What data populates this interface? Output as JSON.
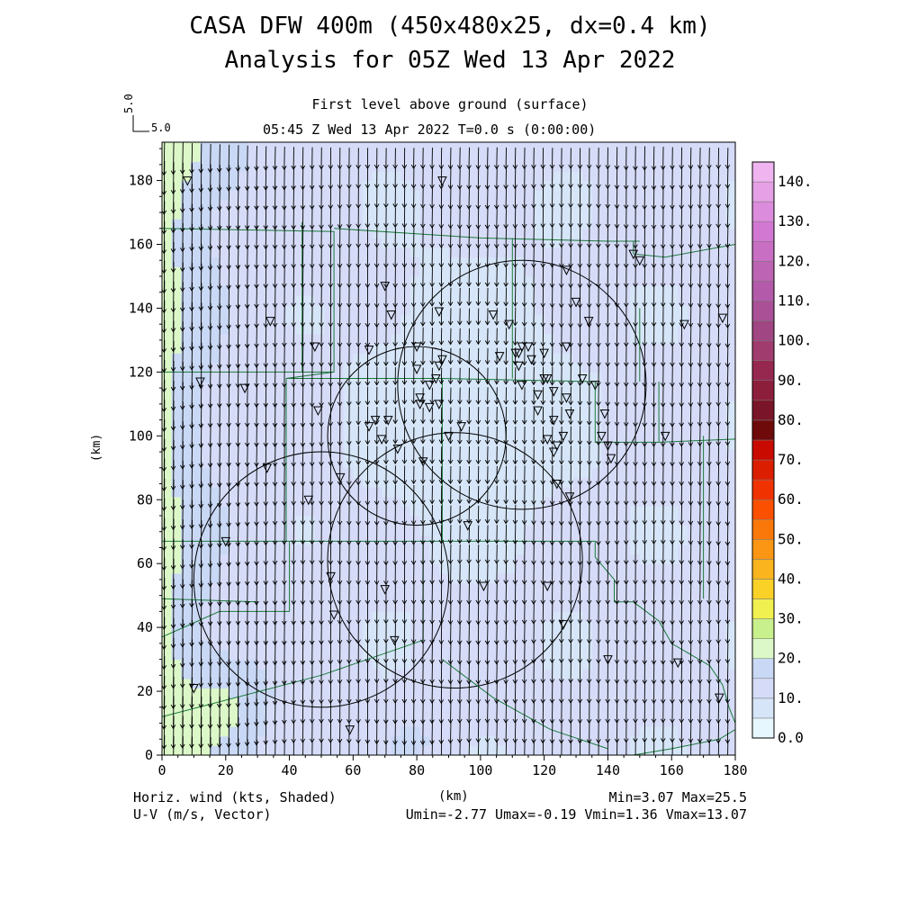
{
  "title": "CASA DFW 400m (450x480x25, dx=0.4 km)",
  "subtitle": "Analysis for 05Z Wed 13 Apr 2022",
  "level_label": "First level above ground (surface)",
  "time_label": "05:45 Z Wed 13 Apr 2022    T=0.0 s (0:00:00)",
  "ref_vector": {
    "value_label": "5.0",
    "speed_label": "5.0"
  },
  "bottom_left": {
    "line1": "Horiz. wind (kts, Shaded)",
    "line2": "U-V (m/s, Vector)"
  },
  "bottom_right": {
    "line1": "Min=3.07 Max=25.5",
    "line2": "Umin=-2.77 Umax=-0.19 Vmin=1.36 Vmax=13.07"
  },
  "colors": {
    "boundary": "#1a7a3a",
    "vector": "#000000",
    "radar_ring": "#000000"
  },
  "chart_data": {
    "type": "heatmap",
    "xlabel": "(km)",
    "ylabel": "(km)",
    "xlim": [
      0,
      180
    ],
    "ylim": [
      0,
      192
    ],
    "x_ticks": [
      "0",
      "20",
      "40",
      "60",
      "80",
      "100",
      "120",
      "140",
      "160",
      "180"
    ],
    "y_ticks": [
      "0",
      "20",
      "40",
      "60",
      "80",
      "100",
      "120",
      "140",
      "160",
      "180"
    ],
    "colorbar": {
      "min": 0,
      "max": 145,
      "labels": [
        "0.0",
        "10.",
        "20.",
        "30.",
        "40.",
        "50.",
        "60.",
        "70.",
        "80.",
        "90.",
        "100.",
        "110.",
        "120.",
        "130.",
        "140."
      ],
      "bins": [
        {
          "lo": 0,
          "hi": 5,
          "color": "#e6f7fd"
        },
        {
          "lo": 5,
          "hi": 10,
          "color": "#d6e6f8"
        },
        {
          "lo": 10,
          "hi": 15,
          "color": "#d6dcf8"
        },
        {
          "lo": 15,
          "hi": 20,
          "color": "#c8d8f5"
        },
        {
          "lo": 20,
          "hi": 25,
          "color": "#dcf8c8"
        },
        {
          "lo": 25,
          "hi": 30,
          "color": "#c8f08c"
        },
        {
          "lo": 30,
          "hi": 35,
          "color": "#f0f050"
        },
        {
          "lo": 35,
          "hi": 40,
          "color": "#fad227"
        },
        {
          "lo": 40,
          "hi": 45,
          "color": "#fab41e"
        },
        {
          "lo": 45,
          "hi": 50,
          "color": "#fa9614"
        },
        {
          "lo": 50,
          "hi": 55,
          "color": "#fa780a"
        },
        {
          "lo": 55,
          "hi": 60,
          "color": "#fa5000"
        },
        {
          "lo": 60,
          "hi": 65,
          "color": "#f03200"
        },
        {
          "lo": 65,
          "hi": 70,
          "color": "#dc1e00"
        },
        {
          "lo": 70,
          "hi": 75,
          "color": "#c80a00"
        },
        {
          "lo": 75,
          "hi": 80,
          "color": "#6e0a0a"
        },
        {
          "lo": 80,
          "hi": 85,
          "color": "#7a1428"
        },
        {
          "lo": 85,
          "hi": 90,
          "color": "#8c1e3c"
        },
        {
          "lo": 90,
          "hi": 95,
          "color": "#962850"
        },
        {
          "lo": 95,
          "hi": 100,
          "color": "#a03c6e"
        },
        {
          "lo": 100,
          "hi": 105,
          "color": "#a04682"
        },
        {
          "lo": 105,
          "hi": 110,
          "color": "#aa5096"
        },
        {
          "lo": 110,
          "hi": 115,
          "color": "#b45aaa"
        },
        {
          "lo": 115,
          "hi": 120,
          "color": "#be64b4"
        },
        {
          "lo": 120,
          "hi": 125,
          "color": "#c86ec3"
        },
        {
          "lo": 125,
          "hi": 130,
          "color": "#d278d2"
        },
        {
          "lo": 130,
          "hi": 135,
          "color": "#dc8cdc"
        },
        {
          "lo": 135,
          "hi": 140,
          "color": "#e6a0e6"
        },
        {
          "lo": 140,
          "hi": 145,
          "color": "#f0b4f0"
        }
      ]
    },
    "wind_field": {
      "speed_min_kts": 3.07,
      "speed_max_kts": 25.5,
      "u_min": -2.77,
      "u_max": -0.19,
      "v_min": 1.36,
      "v_max": 13.07
    },
    "radar_rings": [
      {
        "cx": 113,
        "cy": 116,
        "r": 39
      },
      {
        "cx": 80,
        "cy": 100,
        "r": 28
      },
      {
        "cx": 92,
        "cy": 61,
        "r": 40
      },
      {
        "cx": 50,
        "cy": 55,
        "r": 40
      }
    ],
    "stations": [
      [
        8,
        180
      ],
      [
        12,
        117
      ],
      [
        33,
        90
      ],
      [
        20,
        67
      ],
      [
        10,
        21
      ],
      [
        26,
        115
      ],
      [
        34,
        136
      ],
      [
        48,
        128
      ],
      [
        49,
        108
      ],
      [
        46,
        80
      ],
      [
        56,
        87
      ],
      [
        53,
        56
      ],
      [
        54,
        44
      ],
      [
        59,
        8
      ],
      [
        65,
        127
      ],
      [
        65,
        103
      ],
      [
        67,
        105
      ],
      [
        69,
        99
      ],
      [
        71,
        105
      ],
      [
        70,
        52
      ],
      [
        73,
        36
      ],
      [
        72,
        138
      ],
      [
        70,
        147
      ],
      [
        80,
        128
      ],
      [
        80,
        121
      ],
      [
        81,
        110
      ],
      [
        81,
        112
      ],
      [
        84,
        109
      ],
      [
        84,
        116
      ],
      [
        86,
        118
      ],
      [
        87,
        110
      ],
      [
        87,
        122
      ],
      [
        88,
        124
      ],
      [
        87,
        139
      ],
      [
        88,
        180
      ],
      [
        74,
        96
      ],
      [
        82,
        92
      ],
      [
        90,
        100
      ],
      [
        94,
        103
      ],
      [
        96,
        72
      ],
      [
        101,
        53
      ],
      [
        104,
        138
      ],
      [
        109,
        135
      ],
      [
        113,
        128
      ],
      [
        111,
        126
      ],
      [
        112,
        122
      ],
      [
        113,
        116
      ],
      [
        115,
        128
      ],
      [
        116,
        124
      ],
      [
        118,
        108
      ],
      [
        118,
        113
      ],
      [
        120,
        126
      ],
      [
        121,
        118
      ],
      [
        123,
        114
      ],
      [
        123,
        105
      ],
      [
        124,
        97
      ],
      [
        127,
        112
      ],
      [
        128,
        107
      ],
      [
        127,
        128
      ],
      [
        120,
        118
      ],
      [
        130,
        142
      ],
      [
        134,
        136
      ],
      [
        136,
        116
      ],
      [
        138,
        100
      ],
      [
        124,
        85
      ],
      [
        128,
        81
      ],
      [
        121,
        99
      ],
      [
        123,
        95
      ],
      [
        140,
        97
      ],
      [
        139,
        107
      ],
      [
        141,
        93
      ],
      [
        148,
        157
      ],
      [
        150,
        155
      ],
      [
        158,
        100
      ],
      [
        164,
        135
      ],
      [
        176,
        137
      ],
      [
        175,
        18
      ],
      [
        162,
        29
      ],
      [
        140,
        30
      ],
      [
        126,
        41
      ],
      [
        121,
        53
      ],
      [
        112,
        126
      ],
      [
        106,
        125
      ],
      [
        127,
        152
      ],
      [
        132,
        118
      ],
      [
        126,
        100
      ]
    ]
  }
}
